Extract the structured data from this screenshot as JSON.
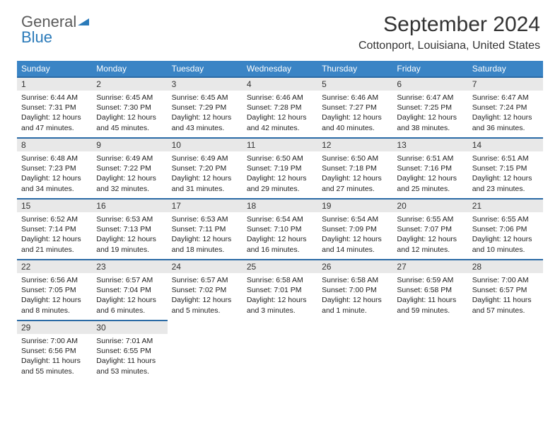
{
  "logo": {
    "text1": "General",
    "text2": "Blue"
  },
  "header": {
    "title": "September 2024",
    "location": "Cottonport, Louisiana, United States"
  },
  "colors": {
    "header_bg": "#3a84c5",
    "header_text": "#ffffff",
    "daynum_bg": "#e8e8e8",
    "daynum_border": "#2a6aa5",
    "body_text": "#222222",
    "title_text": "#333333",
    "logo_gray": "#5a5a5a",
    "logo_blue": "#2a7ab9"
  },
  "day_headers": [
    "Sunday",
    "Monday",
    "Tuesday",
    "Wednesday",
    "Thursday",
    "Friday",
    "Saturday"
  ],
  "weeks": [
    [
      {
        "n": "1",
        "sr": "Sunrise: 6:44 AM",
        "ss": "Sunset: 7:31 PM",
        "dl1": "Daylight: 12 hours",
        "dl2": "and 47 minutes."
      },
      {
        "n": "2",
        "sr": "Sunrise: 6:45 AM",
        "ss": "Sunset: 7:30 PM",
        "dl1": "Daylight: 12 hours",
        "dl2": "and 45 minutes."
      },
      {
        "n": "3",
        "sr": "Sunrise: 6:45 AM",
        "ss": "Sunset: 7:29 PM",
        "dl1": "Daylight: 12 hours",
        "dl2": "and 43 minutes."
      },
      {
        "n": "4",
        "sr": "Sunrise: 6:46 AM",
        "ss": "Sunset: 7:28 PM",
        "dl1": "Daylight: 12 hours",
        "dl2": "and 42 minutes."
      },
      {
        "n": "5",
        "sr": "Sunrise: 6:46 AM",
        "ss": "Sunset: 7:27 PM",
        "dl1": "Daylight: 12 hours",
        "dl2": "and 40 minutes."
      },
      {
        "n": "6",
        "sr": "Sunrise: 6:47 AM",
        "ss": "Sunset: 7:25 PM",
        "dl1": "Daylight: 12 hours",
        "dl2": "and 38 minutes."
      },
      {
        "n": "7",
        "sr": "Sunrise: 6:47 AM",
        "ss": "Sunset: 7:24 PM",
        "dl1": "Daylight: 12 hours",
        "dl2": "and 36 minutes."
      }
    ],
    [
      {
        "n": "8",
        "sr": "Sunrise: 6:48 AM",
        "ss": "Sunset: 7:23 PM",
        "dl1": "Daylight: 12 hours",
        "dl2": "and 34 minutes."
      },
      {
        "n": "9",
        "sr": "Sunrise: 6:49 AM",
        "ss": "Sunset: 7:22 PM",
        "dl1": "Daylight: 12 hours",
        "dl2": "and 32 minutes."
      },
      {
        "n": "10",
        "sr": "Sunrise: 6:49 AM",
        "ss": "Sunset: 7:20 PM",
        "dl1": "Daylight: 12 hours",
        "dl2": "and 31 minutes."
      },
      {
        "n": "11",
        "sr": "Sunrise: 6:50 AM",
        "ss": "Sunset: 7:19 PM",
        "dl1": "Daylight: 12 hours",
        "dl2": "and 29 minutes."
      },
      {
        "n": "12",
        "sr": "Sunrise: 6:50 AM",
        "ss": "Sunset: 7:18 PM",
        "dl1": "Daylight: 12 hours",
        "dl2": "and 27 minutes."
      },
      {
        "n": "13",
        "sr": "Sunrise: 6:51 AM",
        "ss": "Sunset: 7:16 PM",
        "dl1": "Daylight: 12 hours",
        "dl2": "and 25 minutes."
      },
      {
        "n": "14",
        "sr": "Sunrise: 6:51 AM",
        "ss": "Sunset: 7:15 PM",
        "dl1": "Daylight: 12 hours",
        "dl2": "and 23 minutes."
      }
    ],
    [
      {
        "n": "15",
        "sr": "Sunrise: 6:52 AM",
        "ss": "Sunset: 7:14 PM",
        "dl1": "Daylight: 12 hours",
        "dl2": "and 21 minutes."
      },
      {
        "n": "16",
        "sr": "Sunrise: 6:53 AM",
        "ss": "Sunset: 7:13 PM",
        "dl1": "Daylight: 12 hours",
        "dl2": "and 19 minutes."
      },
      {
        "n": "17",
        "sr": "Sunrise: 6:53 AM",
        "ss": "Sunset: 7:11 PM",
        "dl1": "Daylight: 12 hours",
        "dl2": "and 18 minutes."
      },
      {
        "n": "18",
        "sr": "Sunrise: 6:54 AM",
        "ss": "Sunset: 7:10 PM",
        "dl1": "Daylight: 12 hours",
        "dl2": "and 16 minutes."
      },
      {
        "n": "19",
        "sr": "Sunrise: 6:54 AM",
        "ss": "Sunset: 7:09 PM",
        "dl1": "Daylight: 12 hours",
        "dl2": "and 14 minutes."
      },
      {
        "n": "20",
        "sr": "Sunrise: 6:55 AM",
        "ss": "Sunset: 7:07 PM",
        "dl1": "Daylight: 12 hours",
        "dl2": "and 12 minutes."
      },
      {
        "n": "21",
        "sr": "Sunrise: 6:55 AM",
        "ss": "Sunset: 7:06 PM",
        "dl1": "Daylight: 12 hours",
        "dl2": "and 10 minutes."
      }
    ],
    [
      {
        "n": "22",
        "sr": "Sunrise: 6:56 AM",
        "ss": "Sunset: 7:05 PM",
        "dl1": "Daylight: 12 hours",
        "dl2": "and 8 minutes."
      },
      {
        "n": "23",
        "sr": "Sunrise: 6:57 AM",
        "ss": "Sunset: 7:04 PM",
        "dl1": "Daylight: 12 hours",
        "dl2": "and 6 minutes."
      },
      {
        "n": "24",
        "sr": "Sunrise: 6:57 AM",
        "ss": "Sunset: 7:02 PM",
        "dl1": "Daylight: 12 hours",
        "dl2": "and 5 minutes."
      },
      {
        "n": "25",
        "sr": "Sunrise: 6:58 AM",
        "ss": "Sunset: 7:01 PM",
        "dl1": "Daylight: 12 hours",
        "dl2": "and 3 minutes."
      },
      {
        "n": "26",
        "sr": "Sunrise: 6:58 AM",
        "ss": "Sunset: 7:00 PM",
        "dl1": "Daylight: 12 hours",
        "dl2": "and 1 minute."
      },
      {
        "n": "27",
        "sr": "Sunrise: 6:59 AM",
        "ss": "Sunset: 6:58 PM",
        "dl1": "Daylight: 11 hours",
        "dl2": "and 59 minutes."
      },
      {
        "n": "28",
        "sr": "Sunrise: 7:00 AM",
        "ss": "Sunset: 6:57 PM",
        "dl1": "Daylight: 11 hours",
        "dl2": "and 57 minutes."
      }
    ],
    [
      {
        "n": "29",
        "sr": "Sunrise: 7:00 AM",
        "ss": "Sunset: 6:56 PM",
        "dl1": "Daylight: 11 hours",
        "dl2": "and 55 minutes."
      },
      {
        "n": "30",
        "sr": "Sunrise: 7:01 AM",
        "ss": "Sunset: 6:55 PM",
        "dl1": "Daylight: 11 hours",
        "dl2": "and 53 minutes."
      },
      null,
      null,
      null,
      null,
      null
    ]
  ]
}
